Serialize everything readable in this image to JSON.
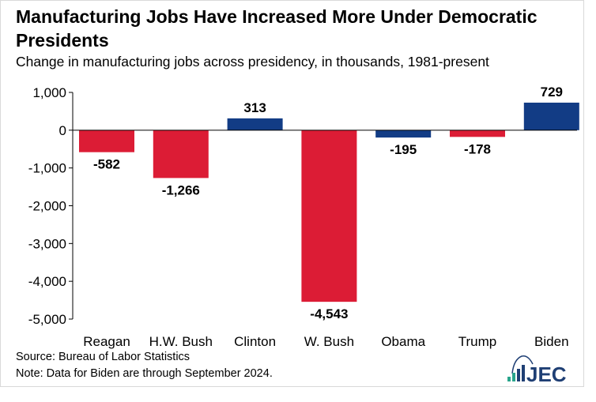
{
  "title": "Manufacturing Jobs Have Increased More Under Democratic Presidents",
  "subtitle": "Change in manufacturing jobs across presidency, in thousands, 1981-present",
  "source": "Source: Bureau of Labor Statistics",
  "note": "Note: Data for Biden are through September 2024.",
  "logo_text": "JEC",
  "colors": {
    "republican": "#dc1c35",
    "democrat": "#123c85",
    "logo_blue": "#1f3f74",
    "logo_teal": "#2aa58c"
  },
  "chart_data": {
    "type": "bar",
    "title": "Manufacturing Jobs Have Increased More Under Democratic Presidents",
    "categories": [
      "Reagan",
      "H.W. Bush",
      "Clinton",
      "W. Bush",
      "Obama",
      "Trump",
      "Biden"
    ],
    "values": [
      -582,
      -1266,
      313,
      -4543,
      -195,
      -178,
      729
    ],
    "value_labels": [
      "-582",
      "-1,266",
      "313",
      "-4,543",
      "-195",
      "-178",
      "729"
    ],
    "party": [
      "R",
      "R",
      "D",
      "R",
      "D",
      "R",
      "D"
    ],
    "yticks": [
      1000,
      0,
      -1000,
      -2000,
      -3000,
      -4000,
      -5000
    ],
    "ytick_labels": [
      "1,000",
      "0",
      "-1,000",
      "-2,000",
      "-3,000",
      "-4,000",
      "-5,000"
    ],
    "ylim": [
      -5000,
      1000
    ],
    "xlabel": "",
    "ylabel": "",
    "grid": false
  }
}
